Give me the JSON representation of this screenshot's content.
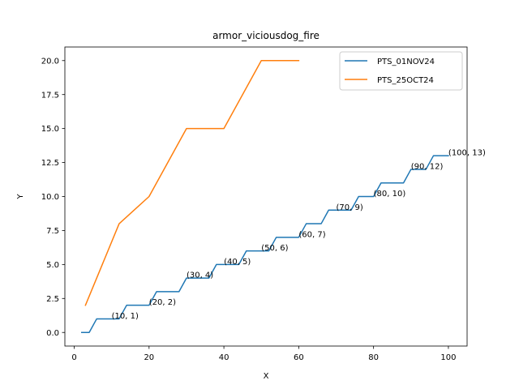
{
  "chart_data": {
    "type": "line",
    "title": "armor_viciousdog_fire",
    "xlabel": "X",
    "ylabel": "Y",
    "xlim": [
      -2.5,
      105
    ],
    "ylim": [
      -1,
      21
    ],
    "xticks": [
      0,
      20,
      40,
      60,
      80,
      100
    ],
    "yticks": [
      0.0,
      2.5,
      5.0,
      7.5,
      10.0,
      12.5,
      15.0,
      17.5,
      20.0
    ],
    "xtick_labels": [
      "0",
      "20",
      "40",
      "60",
      "80",
      "100"
    ],
    "ytick_labels": [
      "0.0",
      "2.5",
      "5.0",
      "7.5",
      "10.0",
      "12.5",
      "15.0",
      "17.5",
      "20.0"
    ],
    "grid": false,
    "legend_position": "upper-right",
    "series": [
      {
        "name": "PTS_01NOV24",
        "color": "#1f77b4",
        "points": [
          [
            2,
            0
          ],
          [
            4,
            0
          ],
          [
            6,
            1
          ],
          [
            12,
            1
          ],
          [
            14,
            2
          ],
          [
            20,
            2
          ],
          [
            22,
            3
          ],
          [
            28,
            3
          ],
          [
            30,
            4
          ],
          [
            36,
            4
          ],
          [
            38,
            5
          ],
          [
            44,
            5
          ],
          [
            46,
            6
          ],
          [
            52,
            6
          ],
          [
            54,
            7
          ],
          [
            60,
            7
          ],
          [
            62,
            8
          ],
          [
            66,
            8
          ],
          [
            68,
            9
          ],
          [
            74,
            9
          ],
          [
            76,
            10
          ],
          [
            80,
            10
          ],
          [
            82,
            11
          ],
          [
            88,
            11
          ],
          [
            90,
            12
          ],
          [
            94,
            12
          ],
          [
            96,
            13
          ],
          [
            100,
            13
          ]
        ]
      },
      {
        "name": "PTS_25OCT24",
        "color": "#ff7f0e",
        "points": [
          [
            3,
            2
          ],
          [
            12,
            8
          ],
          [
            20,
            10
          ],
          [
            30,
            15
          ],
          [
            40,
            15
          ],
          [
            50,
            20
          ],
          [
            60,
            20
          ]
        ]
      }
    ],
    "annotations": [
      {
        "x": 10,
        "y": 1,
        "text": "(10, 1)"
      },
      {
        "x": 20,
        "y": 2,
        "text": "(20, 2)"
      },
      {
        "x": 30,
        "y": 4,
        "text": "(30, 4)"
      },
      {
        "x": 40,
        "y": 5,
        "text": "(40, 5)"
      },
      {
        "x": 50,
        "y": 6,
        "text": "(50, 6)"
      },
      {
        "x": 60,
        "y": 7,
        "text": "(60, 7)"
      },
      {
        "x": 70,
        "y": 9,
        "text": "(70, 9)"
      },
      {
        "x": 80,
        "y": 10,
        "text": "(80, 10)"
      },
      {
        "x": 90,
        "y": 12,
        "text": "(90, 12)"
      },
      {
        "x": 100,
        "y": 13,
        "text": "(100, 13)"
      }
    ]
  }
}
